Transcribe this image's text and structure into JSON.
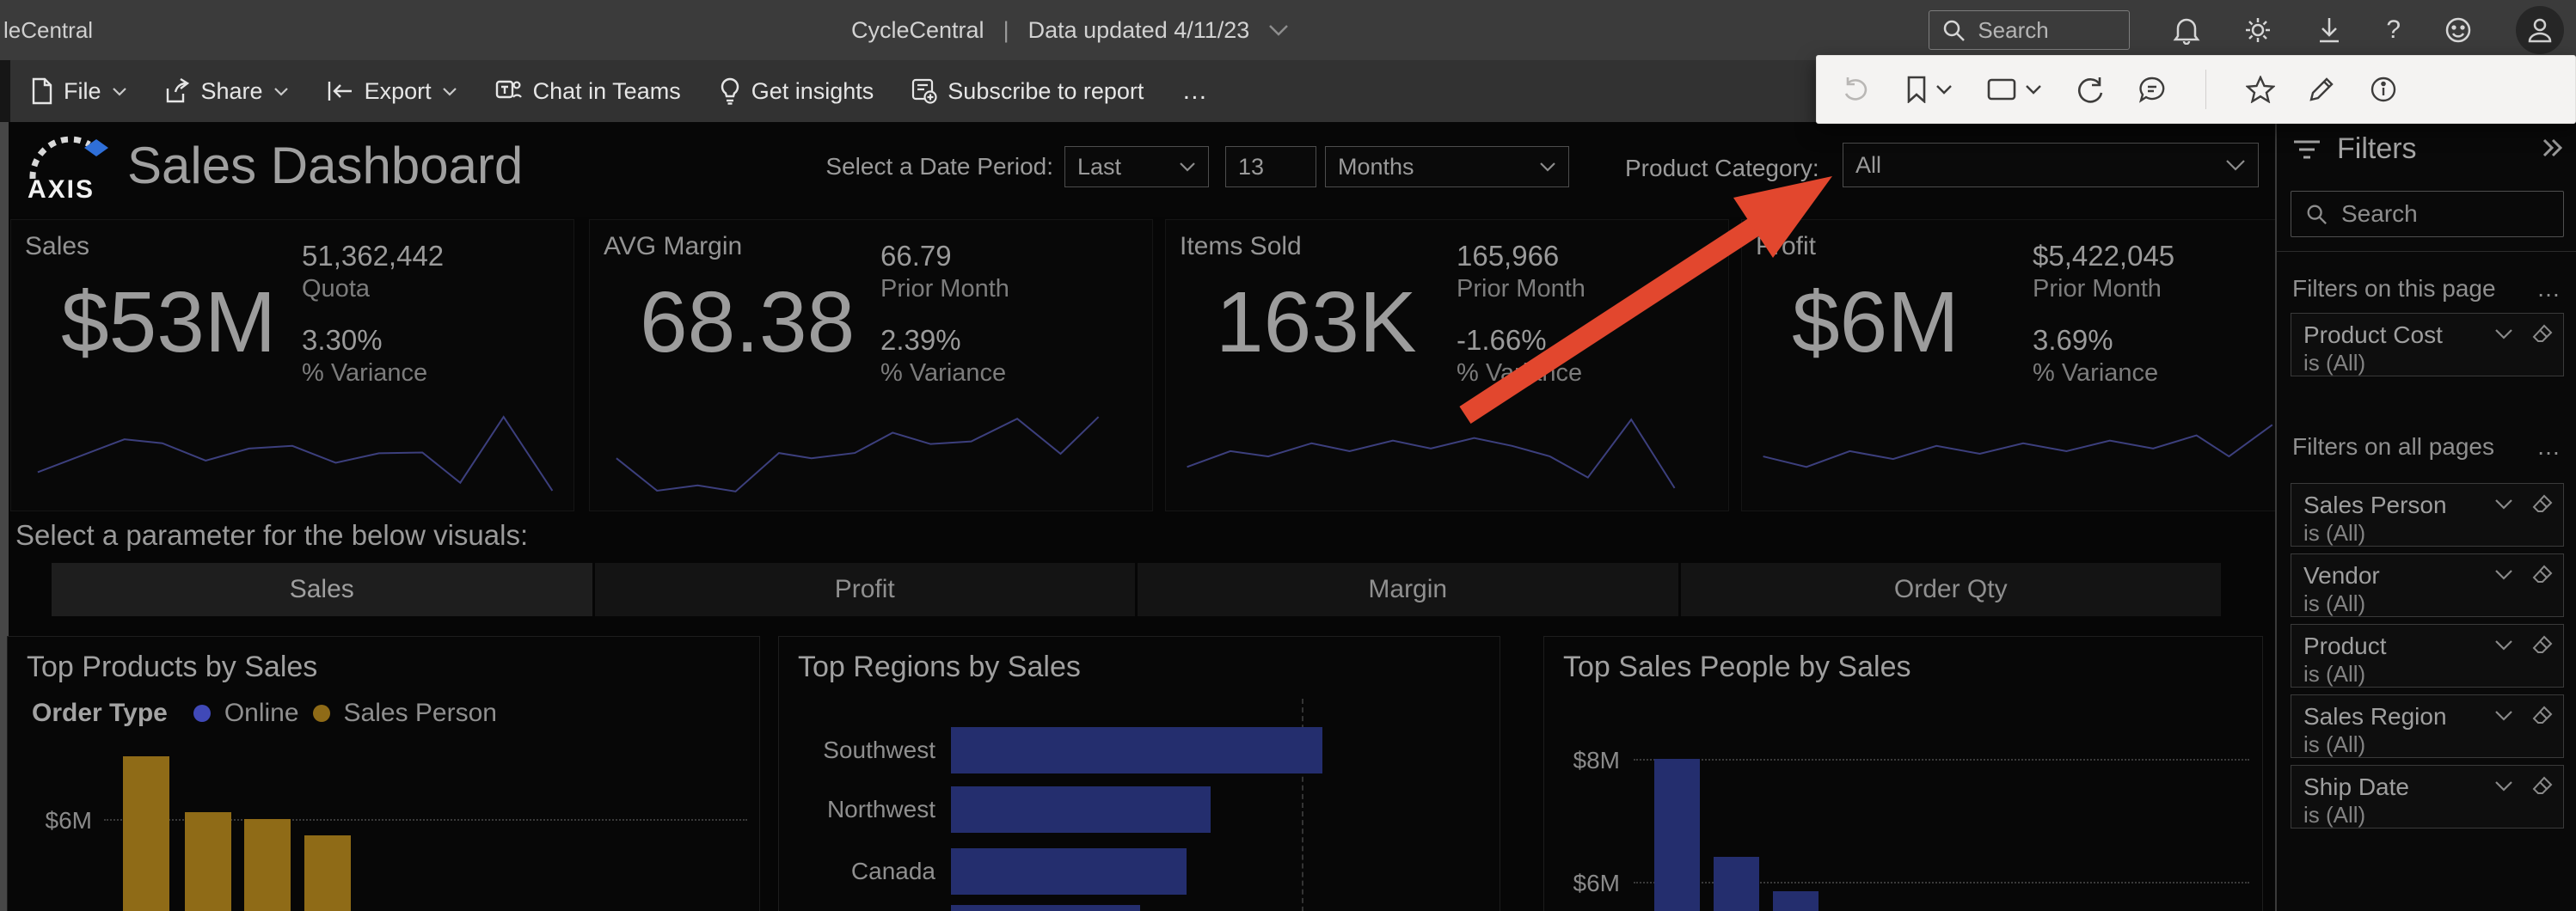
{
  "topbar": {
    "partial_left": "leCentral",
    "app_title": "CycleCentral",
    "separator": "|",
    "updated": "Data updated 4/11/23",
    "search_placeholder": "Search"
  },
  "actionbar": {
    "file": "File",
    "share": "Share",
    "export": "Export",
    "chat_in_teams": "Chat in Teams",
    "get_insights": "Get insights",
    "subscribe": "Subscribe to report",
    "more": "…"
  },
  "header": {
    "logo_text": "AXIS",
    "title": "Sales Dashboard",
    "date_period_label": "Select a Date Period:",
    "period_type": "Last",
    "period_value": "13",
    "period_unit": "Months",
    "category_label": "Product Category:",
    "category_value": "All"
  },
  "kpis": [
    {
      "name": "Sales",
      "big": "$53M",
      "v1": "51,362,442",
      "l1": "Quota",
      "v2": "3.30%",
      "l2": "% Variance",
      "spark": [
        [
          3,
          22
        ],
        [
          19,
          9.5
        ],
        [
          26,
          11
        ],
        [
          34,
          17.6
        ],
        [
          42,
          13
        ],
        [
          50,
          12
        ],
        [
          58,
          18.4
        ],
        [
          66,
          14.8
        ],
        [
          74,
          14.5
        ],
        [
          81,
          26
        ],
        [
          89,
          1
        ],
        [
          98,
          29
        ]
      ]
    },
    {
      "name": "AVG Margin",
      "big": "68.38",
      "v1": "66.79",
      "l1": "Prior Month",
      "v2": "2.39%",
      "l2": "% Variance",
      "spark": [
        [
          3,
          16.7
        ],
        [
          10.5,
          29
        ],
        [
          18,
          27
        ],
        [
          25,
          29.3
        ],
        [
          33,
          14.7
        ],
        [
          39,
          16.7
        ],
        [
          47,
          14.7
        ],
        [
          54,
          7
        ],
        [
          61,
          11.3
        ],
        [
          68.5,
          10.3
        ],
        [
          77,
          1.7
        ],
        [
          85,
          15
        ],
        [
          92,
          1
        ]
      ]
    },
    {
      "name": "Items Sold",
      "big": "163K",
      "v1": "165,966",
      "l1": "Prior Month",
      "v2": "-1.66%",
      "l2": "% Variance",
      "spark": [
        [
          2,
          20
        ],
        [
          10,
          14
        ],
        [
          17,
          16
        ],
        [
          25,
          11
        ],
        [
          32,
          14
        ],
        [
          40,
          10
        ],
        [
          47,
          13
        ],
        [
          55,
          9
        ],
        [
          62,
          12
        ],
        [
          69,
          16
        ],
        [
          76,
          24
        ],
        [
          84,
          2
        ],
        [
          92,
          28
        ]
      ]
    },
    {
      "name": "Profit",
      "big": "$6M",
      "v1": "$5,422,045",
      "l1": "Prior Month",
      "v2": "3.69%",
      "l2": "% Variance",
      "spark": [
        [
          2,
          16
        ],
        [
          10,
          20
        ],
        [
          18,
          14
        ],
        [
          26,
          17
        ],
        [
          34,
          12
        ],
        [
          42,
          15
        ],
        [
          50,
          11
        ],
        [
          58,
          14
        ],
        [
          66,
          10
        ],
        [
          74,
          13
        ],
        [
          82,
          8
        ],
        [
          88,
          16
        ],
        [
          96,
          4
        ]
      ]
    }
  ],
  "parameter": {
    "caption": "Select a parameter for the below visuals:",
    "buttons": [
      "Sales",
      "Profit",
      "Margin",
      "Order Qty"
    ],
    "selected_index": 0
  },
  "chart_data": [
    {
      "type": "bar",
      "title": "Top Products by Sales",
      "legend_title": "Order Type",
      "legend": [
        {
          "label": "Online",
          "color": "#4049b8"
        },
        {
          "label": "Sales Person",
          "color": "#8f6b17"
        }
      ],
      "gridline": {
        "label": "$6M",
        "value": 6
      },
      "values_musd": [
        7.4,
        6.15,
        6.0,
        5.63
      ],
      "bar_color": "#8f6b17",
      "ylim_visible": [
        5,
        8
      ]
    },
    {
      "type": "bar_horizontal",
      "title": "Top Regions by Sales",
      "categories": [
        "Southwest",
        "Northwest",
        "Canada",
        ""
      ],
      "values_rel": [
        1.0,
        0.7,
        0.635,
        0.51
      ],
      "gridline_x_rel": 0.9,
      "bar_color": "#242e6e"
    },
    {
      "type": "bar",
      "title": "Top Sales People by Sales",
      "yticks": [
        "$8M",
        "$6M"
      ],
      "gridline_values": [
        8,
        6
      ],
      "values_musd": [
        8.0,
        6.4,
        5.85
      ],
      "bar_color": "#242e6e"
    }
  ],
  "filters_panel": {
    "title": "Filters",
    "search_placeholder": "Search",
    "this_page_label": "Filters on this page",
    "all_pages_label": "Filters on all pages",
    "more": "…",
    "this_page": [
      {
        "field": "Product Cost",
        "condition": "is (All)"
      }
    ],
    "all_pages": [
      {
        "field": "Sales Person",
        "condition": "is (All)"
      },
      {
        "field": "Vendor",
        "condition": "is (All)"
      },
      {
        "field": "Product",
        "condition": "is (All)"
      },
      {
        "field": "Sales Region",
        "condition": "is (All)"
      },
      {
        "field": "Ship Date",
        "condition": "is (All)"
      }
    ]
  },
  "colors": {
    "accent_red": "#e2472e",
    "sparkline": "#3c3f7d",
    "gold": "#8f6b17",
    "navy": "#242e6e",
    "online_dot": "#4049b8",
    "logo_blue": "#2f6fd8"
  }
}
